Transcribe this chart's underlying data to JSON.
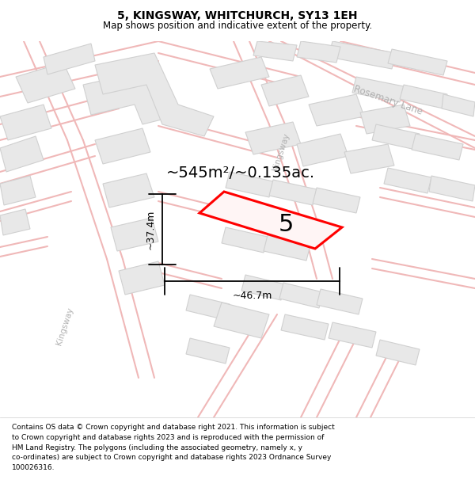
{
  "title": "5, KINGSWAY, WHITCHURCH, SY13 1EH",
  "subtitle": "Map shows position and indicative extent of the property.",
  "area_label": "~545m²/~0.135ac.",
  "property_number": "5",
  "dim_width": "~46.7m",
  "dim_height": "~37.4m",
  "footer_lines": [
    "Contains OS data © Crown copyright and database right 2021. This information is subject",
    "to Crown copyright and database rights 2023 and is reproduced with the permission of",
    "HM Land Registry. The polygons (including the associated geometry, namely x, y",
    "co-ordinates) are subject to Crown copyright and database rights 2023 Ordnance Survey",
    "100026316."
  ],
  "map_bg": "#f8f8f8",
  "page_bg": "#ffffff",
  "property_color": "#ff0000",
  "street_outline_color": "#f0b8b8",
  "block_color": "#e8e8e8",
  "block_outline": "#d0d0d0",
  "street_label_color": "#b0b0b0",
  "kingsway_label": "Kingsway",
  "kingsway_label2": "Kingsway",
  "rosemary_label": "Rosemary Lane"
}
